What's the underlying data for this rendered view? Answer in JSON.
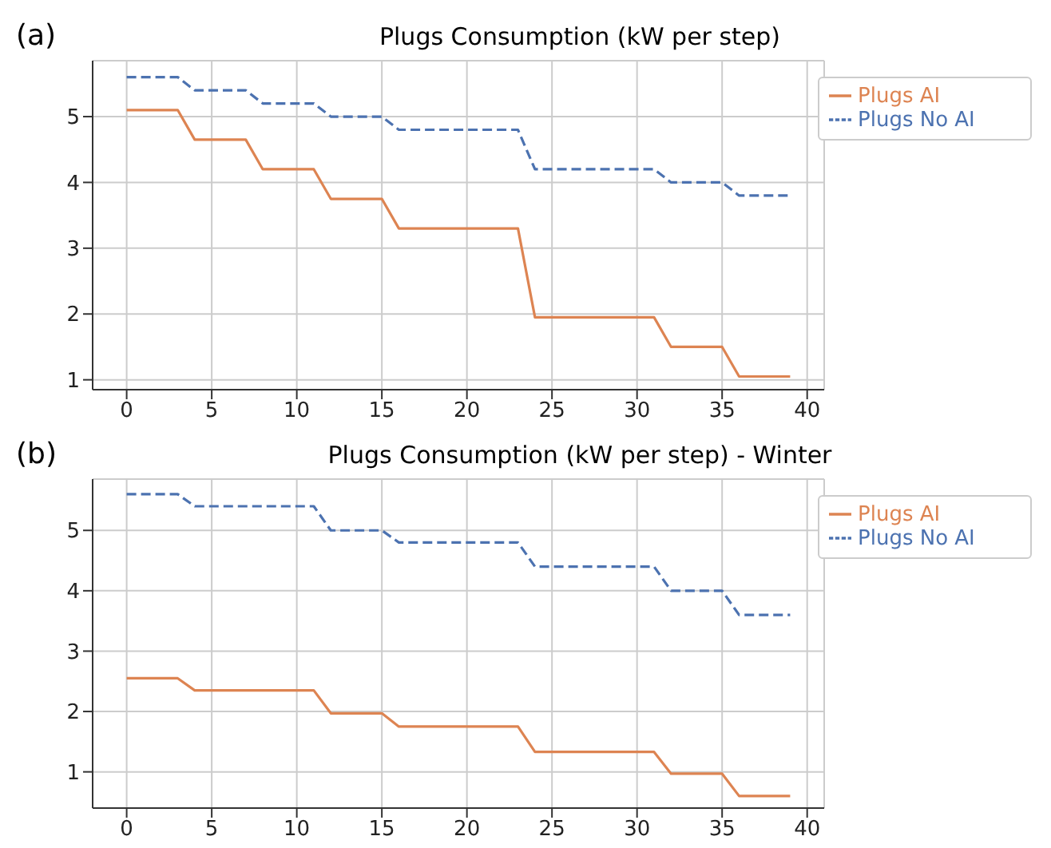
{
  "chart_data": [
    {
      "type": "line",
      "title": "Plugs Consumption (kW per step)",
      "annotations": [
        "(a)"
      ],
      "x": [
        0,
        3,
        4,
        7,
        8,
        11,
        12,
        15,
        16,
        23,
        24,
        31,
        32,
        35,
        36,
        39
      ],
      "series": [
        {
          "name": "Plugs No AI",
          "color": "#4c72b0",
          "line_style": "dashed",
          "values": [
            5.6,
            5.6,
            5.4,
            5.4,
            5.2,
            5.2,
            5.0,
            5.0,
            4.8,
            4.8,
            4.2,
            4.2,
            4.0,
            4.0,
            3.8,
            3.8
          ]
        },
        {
          "name": "Plugs AI",
          "color": "#dd8452",
          "line_style": "solid",
          "values": [
            5.1,
            5.1,
            4.65,
            4.65,
            4.2,
            4.2,
            3.75,
            3.75,
            3.3,
            3.3,
            1.95,
            1.95,
            1.5,
            1.5,
            1.05,
            1.05
          ]
        }
      ],
      "xlim": [
        -2,
        41
      ],
      "xticks": [
        0,
        5,
        10,
        15,
        20,
        25,
        30,
        35,
        40
      ],
      "ylim": [
        0.85,
        5.85
      ],
      "yticks": [
        1,
        2,
        3,
        4,
        5
      ],
      "grid": true,
      "legend": "top right",
      "marker": "none"
    },
    {
      "type": "line",
      "title": "Plugs Consumption (kW per step) - Winter",
      "annotations": [
        "(b)"
      ],
      "x": [
        0,
        3,
        4,
        7,
        8,
        11,
        12,
        15,
        16,
        23,
        24,
        31,
        32,
        35,
        36,
        39
      ],
      "series": [
        {
          "name": "Plugs No AI",
          "color": "#4c72b0",
          "line_style": "dashed",
          "values": [
            5.6,
            5.6,
            5.4,
            5.4,
            5.4,
            5.4,
            5.0,
            5.0,
            4.8,
            4.8,
            4.4,
            4.4,
            4.0,
            4.0,
            3.6,
            3.6
          ]
        },
        {
          "name": "Plugs AI",
          "color": "#dd8452",
          "line_style": "solid",
          "values": [
            2.55,
            2.55,
            2.35,
            2.35,
            2.35,
            2.35,
            1.97,
            1.97,
            1.75,
            1.75,
            1.33,
            1.33,
            0.97,
            0.97,
            0.6,
            0.6
          ]
        }
      ],
      "xlim": [
        -2,
        41
      ],
      "xticks": [
        0,
        5,
        10,
        15,
        20,
        25,
        30,
        35,
        40
      ],
      "ylim": [
        0.4,
        5.85
      ],
      "yticks": [
        1,
        2,
        3,
        4,
        5
      ],
      "grid": true,
      "legend": "top right",
      "marker": "none"
    }
  ]
}
